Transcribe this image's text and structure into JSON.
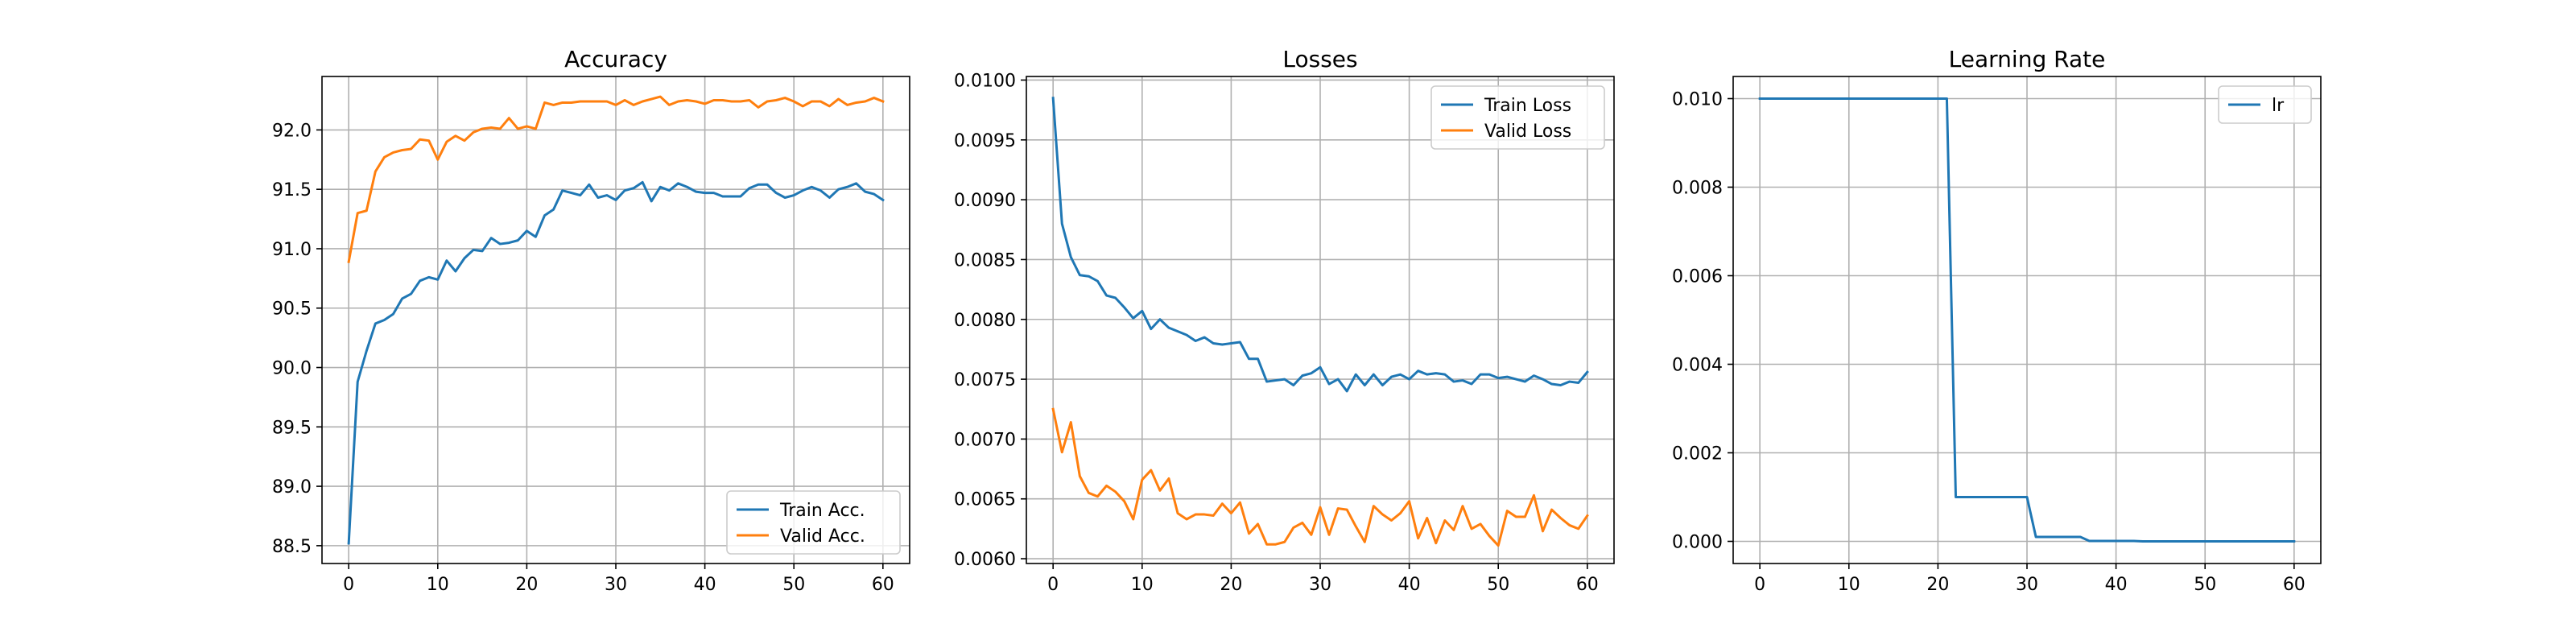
{
  "chart_data": [
    {
      "type": "line",
      "title": "Accuracy",
      "xlabel": "",
      "ylabel": "",
      "xlim": [
        -3,
        63
      ],
      "ylim": [
        88.35,
        92.45
      ],
      "xticks": [
        0,
        10,
        20,
        30,
        40,
        50,
        60
      ],
      "xtick_labels": [
        "0",
        "10",
        "20",
        "30",
        "40",
        "50",
        "60"
      ],
      "yticks": [
        88.5,
        89.0,
        89.5,
        90.0,
        90.5,
        91.0,
        91.5,
        92.0
      ],
      "ytick_labels": [
        "88.5",
        "89.0",
        "89.5",
        "90.0",
        "90.5",
        "91.0",
        "91.5",
        "92.0"
      ],
      "grid": true,
      "legend_position": "lower-right",
      "x": [
        0,
        1,
        2,
        3,
        4,
        5,
        6,
        7,
        8,
        9,
        10,
        11,
        12,
        13,
        14,
        15,
        16,
        17,
        18,
        19,
        20,
        21,
        22,
        23,
        24,
        25,
        26,
        27,
        28,
        29,
        30,
        31,
        32,
        33,
        34,
        35,
        36,
        37,
        38,
        39,
        40,
        41,
        42,
        43,
        44,
        45,
        46,
        47,
        48,
        49,
        50,
        51,
        52,
        53,
        54,
        55,
        56,
        57,
        58,
        59,
        60
      ],
      "series": [
        {
          "name": "Train Acc.",
          "color": "#1f77b4",
          "values": [
            88.52,
            89.88,
            90.14,
            90.37,
            90.4,
            90.45,
            90.58,
            90.62,
            90.73,
            90.76,
            90.74,
            90.9,
            90.81,
            90.92,
            90.99,
            90.98,
            91.09,
            91.04,
            91.05,
            91.07,
            91.15,
            91.1,
            91.28,
            91.33,
            91.49,
            91.47,
            91.45,
            91.54,
            91.43,
            91.45,
            91.41,
            91.49,
            91.51,
            91.56,
            91.4,
            91.52,
            91.49,
            91.55,
            91.52,
            91.48,
            91.47,
            91.47,
            91.44,
            91.44,
            91.44,
            91.51,
            91.54,
            91.54,
            91.47,
            91.43,
            91.45,
            91.49,
            91.52,
            91.49,
            91.43,
            91.5,
            91.52,
            91.55,
            91.48,
            91.46,
            91.41
          ]
        },
        {
          "name": "Valid Acc.",
          "color": "#ff7f0e",
          "values": [
            90.89,
            91.3,
            91.32,
            91.65,
            91.77,
            91.81,
            91.83,
            91.84,
            91.92,
            91.91,
            91.75,
            91.9,
            91.95,
            91.91,
            91.98,
            92.01,
            92.02,
            92.01,
            92.1,
            92.01,
            92.03,
            92.01,
            92.23,
            92.21,
            92.23,
            92.23,
            92.24,
            92.24,
            92.24,
            92.24,
            92.21,
            92.25,
            92.21,
            92.24,
            92.26,
            92.28,
            92.21,
            92.24,
            92.25,
            92.24,
            92.22,
            92.25,
            92.25,
            92.24,
            92.24,
            92.25,
            92.19,
            92.24,
            92.25,
            92.27,
            92.24,
            92.2,
            92.24,
            92.24,
            92.2,
            92.26,
            92.21,
            92.23,
            92.24,
            92.27,
            92.24
          ]
        }
      ]
    },
    {
      "type": "line",
      "title": "Losses",
      "xlabel": "",
      "ylabel": "",
      "xlim": [
        -3,
        63
      ],
      "ylim": [
        0.00596,
        0.01003
      ],
      "xticks": [
        0,
        10,
        20,
        30,
        40,
        50,
        60
      ],
      "xtick_labels": [
        "0",
        "10",
        "20",
        "30",
        "40",
        "50",
        "60"
      ],
      "yticks": [
        0.006,
        0.0065,
        0.007,
        0.0075,
        0.008,
        0.0085,
        0.009,
        0.0095,
        0.01
      ],
      "ytick_labels": [
        "0.0060",
        "0.0065",
        "0.0070",
        "0.0075",
        "0.0080",
        "0.0085",
        "0.0090",
        "0.0095",
        "0.0100"
      ],
      "grid": true,
      "legend_position": "upper-right",
      "x": [
        0,
        1,
        2,
        3,
        4,
        5,
        6,
        7,
        8,
        9,
        10,
        11,
        12,
        13,
        14,
        15,
        16,
        17,
        18,
        19,
        20,
        21,
        22,
        23,
        24,
        25,
        26,
        27,
        28,
        29,
        30,
        31,
        32,
        33,
        34,
        35,
        36,
        37,
        38,
        39,
        40,
        41,
        42,
        43,
        44,
        45,
        46,
        47,
        48,
        49,
        50,
        51,
        52,
        53,
        54,
        55,
        56,
        57,
        58,
        59,
        60
      ],
      "series": [
        {
          "name": "Train Loss",
          "color": "#1f77b4",
          "values": [
            0.00985,
            0.0088,
            0.00852,
            0.00837,
            0.00836,
            0.00832,
            0.0082,
            0.00818,
            0.0081,
            0.00801,
            0.00807,
            0.00792,
            0.008,
            0.00793,
            0.0079,
            0.00787,
            0.00782,
            0.00785,
            0.0078,
            0.00779,
            0.0078,
            0.00781,
            0.00767,
            0.00767,
            0.00748,
            0.00749,
            0.0075,
            0.00745,
            0.00753,
            0.00755,
            0.0076,
            0.00746,
            0.0075,
            0.0074,
            0.00754,
            0.00745,
            0.00754,
            0.00745,
            0.00752,
            0.00754,
            0.0075,
            0.00757,
            0.00754,
            0.00755,
            0.00754,
            0.00748,
            0.00749,
            0.00746,
            0.00754,
            0.00754,
            0.00751,
            0.00752,
            0.0075,
            0.00748,
            0.00753,
            0.0075,
            0.00746,
            0.00745,
            0.00748,
            0.00747,
            0.00756
          ]
        },
        {
          "name": "Valid Loss",
          "color": "#ff7f0e",
          "values": [
            0.00725,
            0.00689,
            0.00714,
            0.00669,
            0.00655,
            0.00652,
            0.00661,
            0.00656,
            0.00648,
            0.00633,
            0.00666,
            0.00674,
            0.00657,
            0.00667,
            0.00638,
            0.00633,
            0.00637,
            0.00637,
            0.00636,
            0.00646,
            0.00638,
            0.00647,
            0.00621,
            0.00629,
            0.00612,
            0.00612,
            0.00614,
            0.00626,
            0.0063,
            0.0062,
            0.00643,
            0.0062,
            0.00642,
            0.00641,
            0.00627,
            0.00614,
            0.00644,
            0.00637,
            0.00632,
            0.00638,
            0.00648,
            0.00617,
            0.00634,
            0.00613,
            0.00632,
            0.00624,
            0.00644,
            0.00625,
            0.00629,
            0.00619,
            0.00611,
            0.0064,
            0.00635,
            0.00635,
            0.00653,
            0.00623,
            0.00641,
            0.00634,
            0.00628,
            0.00625,
            0.00636
          ]
        }
      ]
    },
    {
      "type": "line",
      "title": "Learning Rate",
      "xlabel": "",
      "ylabel": "",
      "xlim": [
        -3,
        63
      ],
      "ylim": [
        -0.0005,
        0.0105
      ],
      "xticks": [
        0,
        10,
        20,
        30,
        40,
        50,
        60
      ],
      "xtick_labels": [
        "0",
        "10",
        "20",
        "30",
        "40",
        "50",
        "60"
      ],
      "yticks": [
        0.0,
        0.002,
        0.004,
        0.006,
        0.008,
        0.01
      ],
      "ytick_labels": [
        "0.000",
        "0.002",
        "0.004",
        "0.006",
        "0.008",
        "0.010"
      ],
      "grid": true,
      "legend_position": "upper-right",
      "x": [
        0,
        1,
        2,
        3,
        4,
        5,
        6,
        7,
        8,
        9,
        10,
        11,
        12,
        13,
        14,
        15,
        16,
        17,
        18,
        19,
        20,
        21,
        22,
        23,
        24,
        25,
        26,
        27,
        28,
        29,
        30,
        31,
        32,
        33,
        34,
        35,
        36,
        37,
        38,
        39,
        40,
        41,
        42,
        43,
        44,
        45,
        46,
        47,
        48,
        49,
        50,
        51,
        52,
        53,
        54,
        55,
        56,
        57,
        58,
        59,
        60
      ],
      "series": [
        {
          "name": "lr",
          "color": "#1f77b4",
          "values": [
            0.01,
            0.01,
            0.01,
            0.01,
            0.01,
            0.01,
            0.01,
            0.01,
            0.01,
            0.01,
            0.01,
            0.01,
            0.01,
            0.01,
            0.01,
            0.01,
            0.01,
            0.01,
            0.01,
            0.01,
            0.01,
            0.01,
            0.001,
            0.001,
            0.001,
            0.001,
            0.001,
            0.001,
            0.001,
            0.001,
            0.001,
            0.0001,
            0.0001,
            0.0001,
            0.0001,
            0.0001,
            0.0001,
            1e-05,
            1e-05,
            1e-05,
            1e-05,
            1e-05,
            1e-05,
            1e-06,
            1e-06,
            1e-06,
            1e-06,
            1e-06,
            1e-06,
            1e-06,
            1e-06,
            1e-06,
            1e-06,
            1e-06,
            1e-06,
            1e-06,
            1e-06,
            1e-06,
            1e-06,
            1e-06,
            1e-06
          ]
        }
      ]
    }
  ]
}
